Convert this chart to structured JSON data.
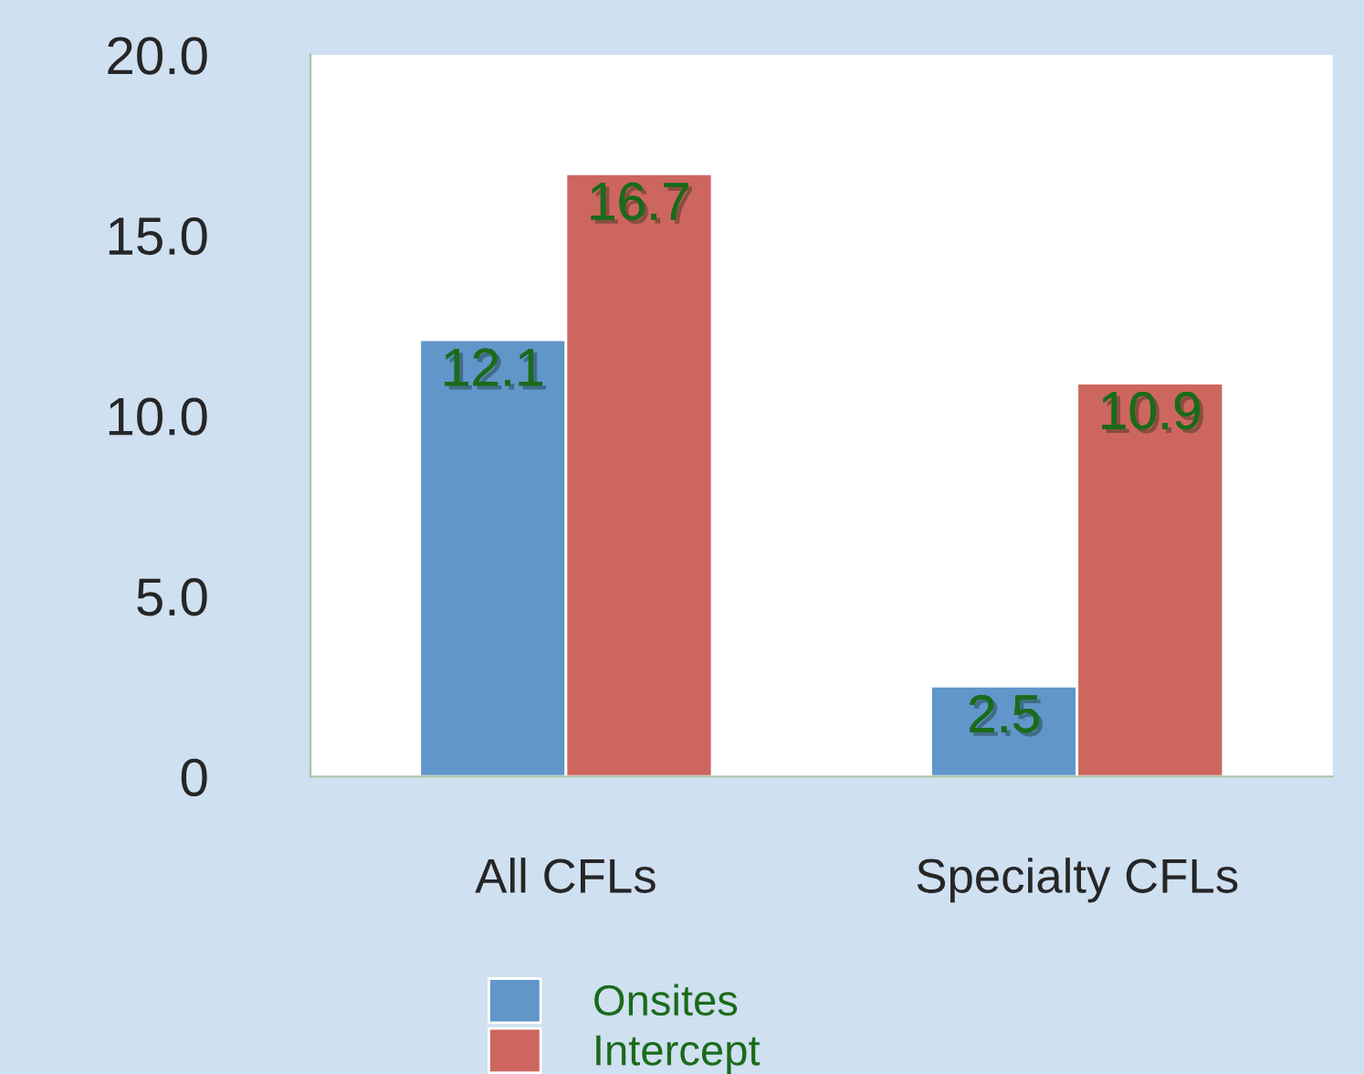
{
  "chart_data": {
    "type": "bar",
    "categories": [
      "All CFLs",
      "Specialty CFLs"
    ],
    "series": [
      {
        "name": "Onsites",
        "color": "#6096c9",
        "values": [
          12.1,
          2.5
        ]
      },
      {
        "name": "Intercept",
        "color": "#cd665f",
        "values": [
          16.7,
          10.9
        ]
      }
    ],
    "ylim": [
      0,
      20
    ],
    "yticks": [
      0,
      {
        "value": 5,
        "label": "5.0"
      },
      {
        "value": 10,
        "label": "10.0"
      },
      {
        "value": 15,
        "label": "15.0"
      },
      {
        "value": 20,
        "label": "20.0"
      }
    ],
    "data_labels": true,
    "grid": false,
    "legend": "bottom"
  }
}
